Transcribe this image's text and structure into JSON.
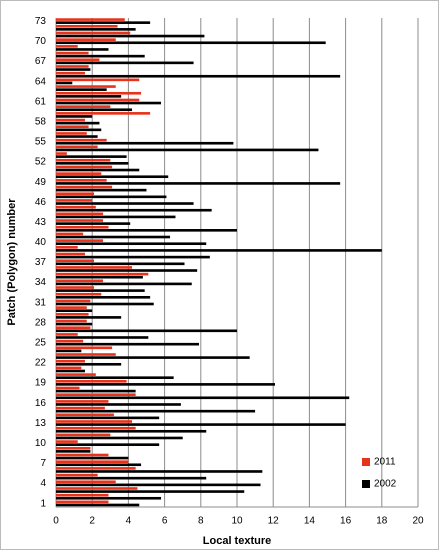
{
  "chart_data": {
    "type": "hbar",
    "xlabel": "Local texture",
    "ylabel": "Patch (Polygon) number",
    "categories": [
      1,
      null,
      null,
      4,
      null,
      null,
      7,
      null,
      null,
      10,
      null,
      null,
      13,
      null,
      null,
      16,
      null,
      null,
      19,
      null,
      null,
      22,
      null,
      null,
      25,
      null,
      null,
      28,
      null,
      null,
      31,
      null,
      null,
      34,
      null,
      null,
      37,
      null,
      null,
      40,
      null,
      null,
      43,
      null,
      null,
      46,
      null,
      null,
      49,
      null,
      null,
      52,
      null,
      null,
      55,
      null,
      null,
      58,
      null,
      null,
      61,
      null,
      null,
      64,
      null,
      null,
      67,
      null,
      null,
      70,
      null,
      null,
      73
    ],
    "series": [
      {
        "name": "2011",
        "color": "#e8331c",
        "values": [
          2.9,
          2.9,
          4.5,
          3.3,
          2.3,
          4.4,
          4.0,
          2.9,
          1.9,
          1.2,
          3.0,
          4.4,
          4.2,
          3.2,
          2.7,
          2.9,
          4.4,
          1.3,
          3.9,
          2.2,
          1.4,
          1.6,
          3.3,
          3.1,
          1.5,
          1.2,
          1.9,
          1.7,
          1.8,
          1.7,
          1.9,
          2.5,
          2.1,
          2.6,
          5.1,
          4.2,
          2.1,
          1.6,
          1.2,
          2.6,
          1.5,
          2.9,
          2.6,
          2.6,
          2.2,
          2.0,
          2.1,
          3.1,
          2.8,
          2.5,
          3.1,
          3.0,
          0.6,
          2.3,
          2.8,
          1.7,
          1.8,
          1.6,
          5.2,
          3.0,
          4.6,
          4.7,
          3.3,
          4.6,
          1.6,
          1.8,
          2.4,
          1.8,
          1.2,
          3.3,
          4.1,
          3.4,
          3.8
        ]
      },
      {
        "name": "2002",
        "color": "#000000",
        "values": [
          4.6,
          5.8,
          10.4,
          11.3,
          8.3,
          11.4,
          4.7,
          4.0,
          1.9,
          5.7,
          7.0,
          8.3,
          16.0,
          5.7,
          11.0,
          6.9,
          16.2,
          4.4,
          12.1,
          6.5,
          1.6,
          3.6,
          10.7,
          1.4,
          7.9,
          5.1,
          10.0,
          2.0,
          3.6,
          2.0,
          5.4,
          5.2,
          4.9,
          7.5,
          4.8,
          7.8,
          7.1,
          8.5,
          18.0,
          8.3,
          6.3,
          10.0,
          4.1,
          6.6,
          8.6,
          7.6,
          6.1,
          5.0,
          15.7,
          6.2,
          4.6,
          4.0,
          3.9,
          14.5,
          9.8,
          2.3,
          2.5,
          2.4,
          2.0,
          4.2,
          5.8,
          3.6,
          2.8,
          0.9,
          15.7,
          1.9,
          7.6,
          4.9,
          2.9,
          14.9,
          8.2,
          4.4,
          5.2
        ]
      }
    ],
    "xlim": [
      0,
      20
    ],
    "xticks": [
      0,
      2,
      4,
      6,
      8,
      10,
      12,
      14,
      16,
      18,
      20
    ],
    "grid": true,
    "legend": "lower right"
  }
}
